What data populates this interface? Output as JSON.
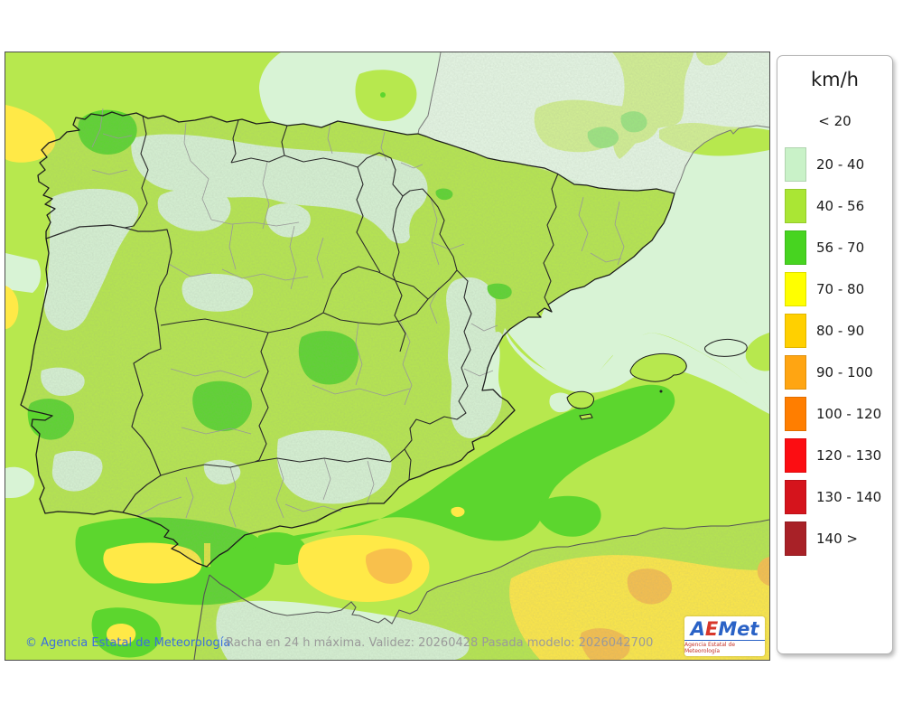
{
  "legend": {
    "unit": "km/h",
    "items": [
      {
        "label": "< 20",
        "color": null
      },
      {
        "label": "20 - 40",
        "color": "#c9f2c8"
      },
      {
        "label": "40 - 56",
        "color": "#aae634"
      },
      {
        "label": "56 - 70",
        "color": "#47d420"
      },
      {
        "label": "70 - 80",
        "color": "#ffff00"
      },
      {
        "label": "80 - 90",
        "color": "#ffd000"
      },
      {
        "label": "90 - 100",
        "color": "#ffa512"
      },
      {
        "label": "100 - 120",
        "color": "#ff7e00"
      },
      {
        "label": "120 - 130",
        "color": "#fc0d12"
      },
      {
        "label": "130 - 140",
        "color": "#d5141c"
      },
      {
        "label": "140 >",
        "color": "#a82127"
      }
    ]
  },
  "footer": {
    "copyright": "© Agencia Estatal de Meteorología",
    "model_info": "Racha en 24 h máxima. Validez: 20260428 Pasada modelo: 2026042700"
  },
  "logo": {
    "text": "AEMet",
    "letters": [
      {
        "ch": "A",
        "color": "#2a62c6"
      },
      {
        "ch": "E",
        "color": "#d8372b"
      },
      {
        "ch": "M",
        "color": "#2a62c6"
      },
      {
        "ch": "e",
        "color": "#2a62c6"
      },
      {
        "ch": "t",
        "color": "#2a62c6"
      }
    ],
    "subtitle": "Agencia Estatal de Meteorología"
  },
  "map": {
    "palette": {
      "mint": "#d8f3d5",
      "ygreen": "#b7e84e",
      "green": "#5cd62e",
      "yellow": "#ffe947",
      "gold": "#f8c04c"
    }
  }
}
